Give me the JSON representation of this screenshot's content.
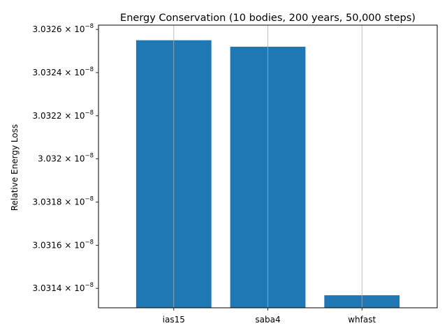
{
  "chart_data": {
    "type": "bar",
    "title": "Energy Conservation (10 bodies, 200 years, 50,000 steps)",
    "xlabel": "",
    "ylabel": "Relative Energy Loss",
    "categories": [
      "ias15",
      "saba4",
      "whfast"
    ],
    "values": [
      3.03255e-08,
      3.03252e-08,
      3.031368e-08
    ],
    "ylim": [
      3.03131e-08,
      3.03262e-08
    ],
    "y_ticks": [
      {
        "mantissa": "3.0314",
        "exponent": "−8"
      },
      {
        "mantissa": "3.0316",
        "exponent": "−8"
      },
      {
        "mantissa": "3.0318",
        "exponent": "−8"
      },
      {
        "mantissa": "3.032",
        "exponent": "−8"
      },
      {
        "mantissa": "3.0322",
        "exponent": "−8"
      },
      {
        "mantissa": "3.0324",
        "exponent": "−8"
      },
      {
        "mantissa": "3.0326",
        "exponent": "−8"
      }
    ],
    "y_tick_values": [
      3.0314e-08,
      3.0316e-08,
      3.0318e-08,
      3.032e-08,
      3.0322e-08,
      3.0324e-08,
      3.0326e-08
    ],
    "grid": "x-axis only",
    "bar_color": "#1f77b4",
    "grid_color": "#b0b0b0"
  }
}
